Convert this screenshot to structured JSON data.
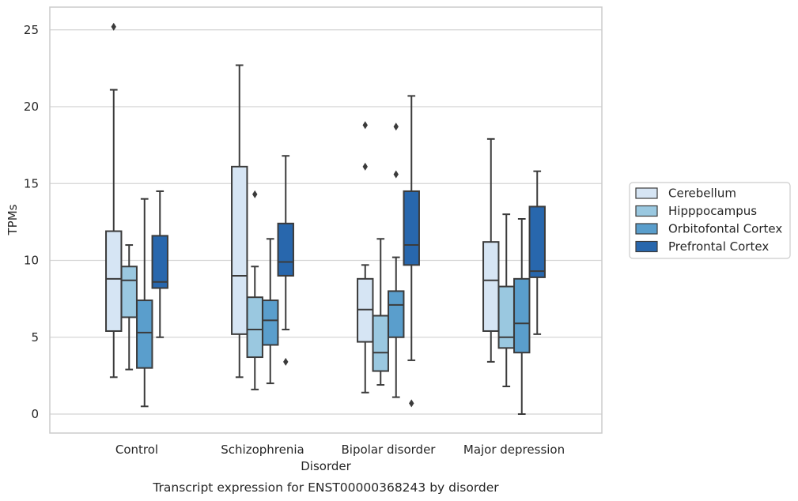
{
  "chart_data": {
    "type": "boxplot",
    "title": "",
    "caption": "Transcript expression for ENST00000368243 by disorder",
    "xlabel": "Disorder",
    "ylabel": "TPMs",
    "ylim": [
      -1.2,
      26.5
    ],
    "yticks": [
      0,
      5,
      10,
      15,
      20,
      25
    ],
    "grid": "horizontal",
    "legend_position": "right",
    "categories": [
      "Control",
      "Schizophrenia",
      "Bipolar disorder",
      "Major depression"
    ],
    "series": [
      {
        "name": "Cerebellum",
        "color": "#d6e5f4",
        "boxes": [
          {
            "whislo": 2.4,
            "q1": 5.4,
            "med": 8.8,
            "q3": 11.9,
            "whishi": 21.1,
            "fliers": [
              25.2
            ]
          },
          {
            "whislo": 2.4,
            "q1": 5.2,
            "med": 9.0,
            "q3": 16.1,
            "whishi": 22.7,
            "fliers": []
          },
          {
            "whislo": 1.4,
            "q1": 4.7,
            "med": 6.8,
            "q3": 8.8,
            "whishi": 9.7,
            "fliers": [
              18.8,
              16.1
            ]
          },
          {
            "whislo": 3.4,
            "q1": 5.4,
            "med": 8.7,
            "q3": 11.2,
            "whishi": 17.9,
            "fliers": []
          }
        ]
      },
      {
        "name": "Hipppocampus",
        "color": "#9ac8e0",
        "boxes": [
          {
            "whislo": 2.9,
            "q1": 6.3,
            "med": 8.7,
            "q3": 9.6,
            "whishi": 11.0,
            "fliers": []
          },
          {
            "whislo": 1.6,
            "q1": 3.7,
            "med": 5.5,
            "q3": 7.6,
            "whishi": 9.6,
            "fliers": [
              14.3
            ]
          },
          {
            "whislo": 1.9,
            "q1": 2.8,
            "med": 4.0,
            "q3": 6.4,
            "whishi": 11.4,
            "fliers": []
          },
          {
            "whislo": 1.8,
            "q1": 4.3,
            "med": 5.0,
            "q3": 8.3,
            "whishi": 13.0,
            "fliers": []
          }
        ]
      },
      {
        "name": "Orbitofontal Cortex",
        "color": "#5a9ecc",
        "boxes": [
          {
            "whislo": 0.5,
            "q1": 3.0,
            "med": 5.3,
            "q3": 7.4,
            "whishi": 14.0,
            "fliers": []
          },
          {
            "whislo": 2.0,
            "q1": 4.5,
            "med": 6.1,
            "q3": 7.4,
            "whishi": 11.4,
            "fliers": []
          },
          {
            "whislo": 1.1,
            "q1": 5.0,
            "med": 7.1,
            "q3": 8.0,
            "whishi": 10.2,
            "fliers": [
              18.7,
              15.6
            ]
          },
          {
            "whislo": 0.0,
            "q1": 4.0,
            "med": 5.9,
            "q3": 8.8,
            "whishi": 12.7,
            "fliers": []
          }
        ]
      },
      {
        "name": "Prefrontal Cortex",
        "color": "#2867ad",
        "boxes": [
          {
            "whislo": 5.0,
            "q1": 8.2,
            "med": 8.6,
            "q3": 11.6,
            "whishi": 14.5,
            "fliers": []
          },
          {
            "whislo": 5.5,
            "q1": 9.0,
            "med": 9.9,
            "q3": 12.4,
            "whishi": 16.8,
            "fliers": [
              3.4
            ]
          },
          {
            "whislo": 3.5,
            "q1": 9.7,
            "med": 11.0,
            "q3": 14.5,
            "whishi": 20.7,
            "fliers": [
              0.7
            ]
          },
          {
            "whislo": 5.2,
            "q1": 8.9,
            "med": 9.3,
            "q3": 13.5,
            "whishi": 15.8,
            "fliers": []
          }
        ]
      }
    ]
  }
}
